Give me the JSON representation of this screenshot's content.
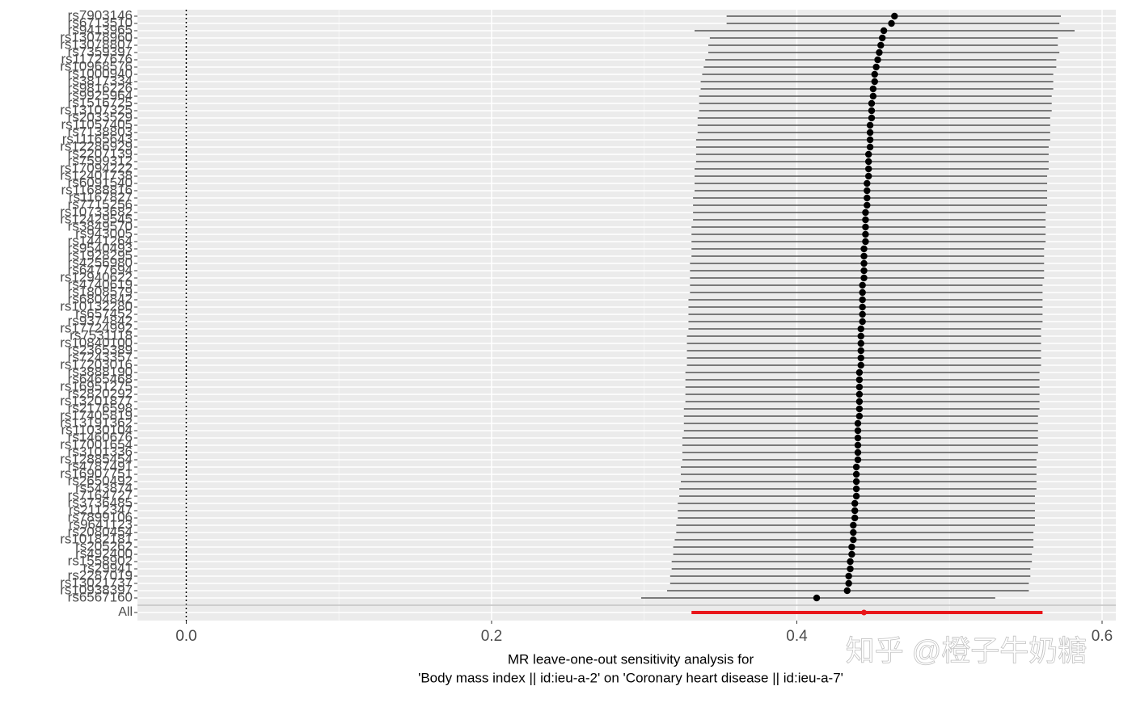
{
  "chart_data": {
    "type": "forest",
    "x_label": [
      "MR leave-one-out sensitivity analysis for",
      "'Body mass index || id:ieu-a-2' on 'Coronary heart disease || id:ieu-a-7'"
    ],
    "watermark": "知乎 @橙子牛奶糖",
    "categories": [
      "rs7903146",
      "rs6713510",
      "rs9413965",
      "rs13078960",
      "rs13078807",
      "rs7359397",
      "rs11727676",
      "rs10968576",
      "rs1000940",
      "rs3817334",
      "rs9816226",
      "rs9925964",
      "rs1516725",
      "rs13107325",
      "rs2033529",
      "rs11057405",
      "rs7138803",
      "rs11165643",
      "rs12286929",
      "rs2207139",
      "rs7599312",
      "rs17094222",
      "rs12401738",
      "rs6091540",
      "rs11688816",
      "rs1167827",
      "rs7715256",
      "rs10733682",
      "rs12429545",
      "rs3849570",
      "rs943005",
      "rs1441264",
      "rs9540493",
      "rs1928295",
      "rs4256980",
      "rs6477694",
      "rs12940622",
      "rs4740619",
      "rs1808579",
      "rs6804842",
      "rs10132280",
      "rs657452",
      "rs9374842",
      "rs17724992",
      "rs7531118",
      "rs10840100",
      "rs2365389",
      "rs7243357",
      "rs17203016",
      "rs3888190",
      "rs6465468",
      "rs16951275",
      "rs2820292",
      "rs13201877",
      "rs2176598",
      "rs17405819",
      "rs13191362",
      "rs11030104",
      "rs1460676",
      "rs17001654",
      "rs3101336",
      "rs12885454",
      "rs4787491",
      "rs16907751",
      "rs2650492",
      "rs543874",
      "rs7164727",
      "rs3736485",
      "rs2112347",
      "rs7899106",
      "rs9641123",
      "rs2080454",
      "rs10182181",
      "rs205262",
      "rs492400",
      "rs1558902",
      "rs29941",
      "rs2287019",
      "rs13021737",
      "rs10938397",
      "rs6567160",
      null,
      "All"
    ],
    "estimate": [
      0.464,
      0.462,
      0.457,
      0.456,
      0.455,
      0.454,
      0.453,
      0.452,
      0.451,
      0.451,
      0.45,
      0.45,
      0.449,
      0.449,
      0.449,
      0.448,
      0.448,
      0.448,
      0.448,
      0.447,
      0.447,
      0.447,
      0.447,
      0.446,
      0.446,
      0.446,
      0.446,
      0.445,
      0.445,
      0.445,
      0.445,
      0.445,
      0.444,
      0.444,
      0.444,
      0.444,
      0.444,
      0.443,
      0.443,
      0.443,
      0.443,
      0.443,
      0.443,
      0.442,
      0.442,
      0.442,
      0.442,
      0.442,
      0.442,
      0.441,
      0.441,
      0.441,
      0.441,
      0.441,
      0.441,
      0.441,
      0.44,
      0.44,
      0.44,
      0.44,
      0.44,
      0.44,
      0.439,
      0.439,
      0.439,
      0.439,
      0.439,
      0.438,
      0.438,
      0.438,
      0.437,
      0.437,
      0.437,
      0.436,
      0.436,
      0.435,
      0.435,
      0.434,
      0.434,
      0.433,
      0.413,
      null,
      0.444
    ],
    "ci_lower": [
      0.354,
      0.354,
      0.333,
      0.343,
      0.342,
      0.342,
      0.34,
      0.339,
      0.338,
      0.337,
      0.337,
      0.336,
      0.336,
      0.336,
      0.335,
      0.335,
      0.335,
      0.334,
      0.334,
      0.334,
      0.334,
      0.333,
      0.333,
      0.333,
      0.333,
      0.332,
      0.332,
      0.332,
      0.332,
      0.331,
      0.331,
      0.331,
      0.331,
      0.331,
      0.33,
      0.33,
      0.33,
      0.33,
      0.33,
      0.329,
      0.329,
      0.329,
      0.329,
      0.329,
      0.328,
      0.328,
      0.328,
      0.328,
      0.328,
      0.327,
      0.327,
      0.327,
      0.327,
      0.327,
      0.326,
      0.326,
      0.326,
      0.326,
      0.325,
      0.325,
      0.325,
      0.325,
      0.324,
      0.324,
      0.324,
      0.323,
      0.323,
      0.322,
      0.322,
      0.322,
      0.321,
      0.321,
      0.32,
      0.319,
      0.319,
      0.318,
      0.318,
      0.317,
      0.317,
      0.315,
      0.298,
      null,
      0.331
    ],
    "ci_upper": [
      0.573,
      0.572,
      0.582,
      0.571,
      0.571,
      0.572,
      0.57,
      0.57,
      0.568,
      0.568,
      0.568,
      0.567,
      0.567,
      0.567,
      0.566,
      0.566,
      0.566,
      0.566,
      0.565,
      0.565,
      0.565,
      0.565,
      0.564,
      0.564,
      0.564,
      0.564,
      0.564,
      0.563,
      0.563,
      0.563,
      0.563,
      0.563,
      0.562,
      0.562,
      0.562,
      0.562,
      0.562,
      0.561,
      0.561,
      0.561,
      0.561,
      0.561,
      0.561,
      0.56,
      0.56,
      0.56,
      0.56,
      0.56,
      0.56,
      0.559,
      0.559,
      0.559,
      0.559,
      0.559,
      0.559,
      0.558,
      0.558,
      0.558,
      0.558,
      0.558,
      0.558,
      0.557,
      0.557,
      0.557,
      0.557,
      0.557,
      0.556,
      0.556,
      0.556,
      0.556,
      0.556,
      0.555,
      0.555,
      0.555,
      0.554,
      0.554,
      0.553,
      0.553,
      0.552,
      0.552,
      0.53,
      null,
      0.561
    ],
    "color": "#000000",
    "summary_color": "#e8161b",
    "xlim": [
      -0.032,
      0.609
    ],
    "xticks": [
      {
        "value": 0,
        "label": "0.0"
      },
      0.2,
      0.4,
      0.6
    ],
    "minor_xticks": [
      0.1,
      0.3,
      0.5
    ],
    "reference_line": 0,
    "grid": true
  }
}
